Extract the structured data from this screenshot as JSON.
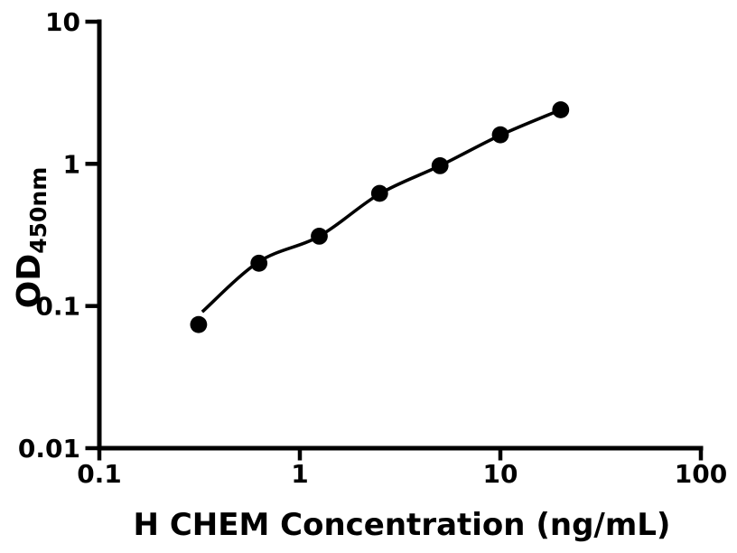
{
  "figure": {
    "background_color": "#ffffff",
    "ink_color": "#000000"
  },
  "chart_data": {
    "type": "scatter",
    "title": "",
    "xlabel": "H CHEM Concentration (ng/mL)",
    "ylabel_main": "OD",
    "ylabel_subscript": "450nm",
    "x_scale": "log",
    "y_scale": "log",
    "xlim": [
      0.1,
      100
    ],
    "ylim": [
      0.01,
      10
    ],
    "x_ticks": [
      0.1,
      1,
      10,
      100
    ],
    "x_tick_labels": [
      "0.1",
      "1",
      "10",
      "100"
    ],
    "y_ticks": [
      10,
      1,
      0.1,
      0.01
    ],
    "y_tick_labels": [
      "10",
      "1",
      "0.1",
      "0.01"
    ],
    "grid": false,
    "legend": null,
    "series": [
      {
        "name": "standard-points",
        "type": "scatter",
        "marker": "filled-circle",
        "color": "#000000",
        "x": [
          0.3125,
          0.625,
          1.25,
          2.5,
          5,
          10,
          20
        ],
        "y": [
          0.074,
          0.2,
          0.31,
          0.62,
          0.97,
          1.6,
          2.4
        ]
      },
      {
        "name": "fit-curve",
        "type": "line",
        "color": "#000000",
        "x": [
          0.326,
          0.625,
          1.25,
          2.5,
          5,
          10,
          20
        ],
        "y": [
          0.091,
          0.205,
          0.31,
          0.615,
          0.97,
          1.59,
          2.4
        ]
      }
    ]
  }
}
